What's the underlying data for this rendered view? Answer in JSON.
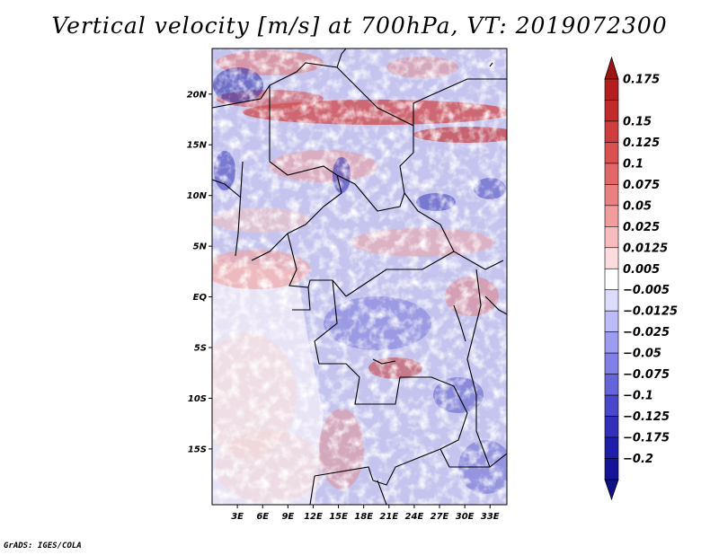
{
  "title": "Vertical velocity [m/s] at 700hPa, VT: 2019072300",
  "credit": "GrADS: IGES/COLA",
  "map": {
    "lat_range": [
      -20.5,
      24.5
    ],
    "lon_range": [
      0,
      35
    ],
    "lat_ticks": [
      {
        "value": 20,
        "label": "20N"
      },
      {
        "value": 15,
        "label": "15N"
      },
      {
        "value": 10,
        "label": "10N"
      },
      {
        "value": 5,
        "label": "5N"
      },
      {
        "value": 0,
        "label": "EQ"
      },
      {
        "value": -5,
        "label": "5S"
      },
      {
        "value": -10,
        "label": "10S"
      },
      {
        "value": -15,
        "label": "15S"
      }
    ],
    "lon_ticks": [
      {
        "value": 3,
        "label": "3E"
      },
      {
        "value": 6,
        "label": "6E"
      },
      {
        "value": 9,
        "label": "9E"
      },
      {
        "value": 12,
        "label": "12E"
      },
      {
        "value": 15,
        "label": "15E"
      },
      {
        "value": 18,
        "label": "18E"
      },
      {
        "value": 21,
        "label": "21E"
      },
      {
        "value": 24,
        "label": "24E"
      },
      {
        "value": 27,
        "label": "27E"
      },
      {
        "value": 30,
        "label": "30E"
      },
      {
        "value": 33,
        "label": "33E"
      }
    ]
  },
  "colorbar": {
    "labels": [
      "0.175",
      "0.15",
      "0.125",
      "0.1",
      "0.075",
      "0.05",
      "0.025",
      "0.0125",
      "0.005",
      "−0.005",
      "−0.0125",
      "−0.025",
      "−0.05",
      "−0.075",
      "−0.1",
      "−0.125",
      "−0.175",
      "−0.2"
    ],
    "colors": [
      "#b41e1e",
      "#c42a2a",
      "#d13c3c",
      "#dc5050",
      "#e46666",
      "#ec8080",
      "#f39c9c",
      "#f8bcbc",
      "#fcdcdc",
      "#ffffff",
      "#dcdcfc",
      "#bcbcf8",
      "#9c9cf0",
      "#8080e8",
      "#6464dc",
      "#4848cc",
      "#3030bc",
      "#1e1eac",
      "#14149a"
    ],
    "arrow_top_color": "#a01414",
    "arrow_bottom_color": "#10108c"
  }
}
